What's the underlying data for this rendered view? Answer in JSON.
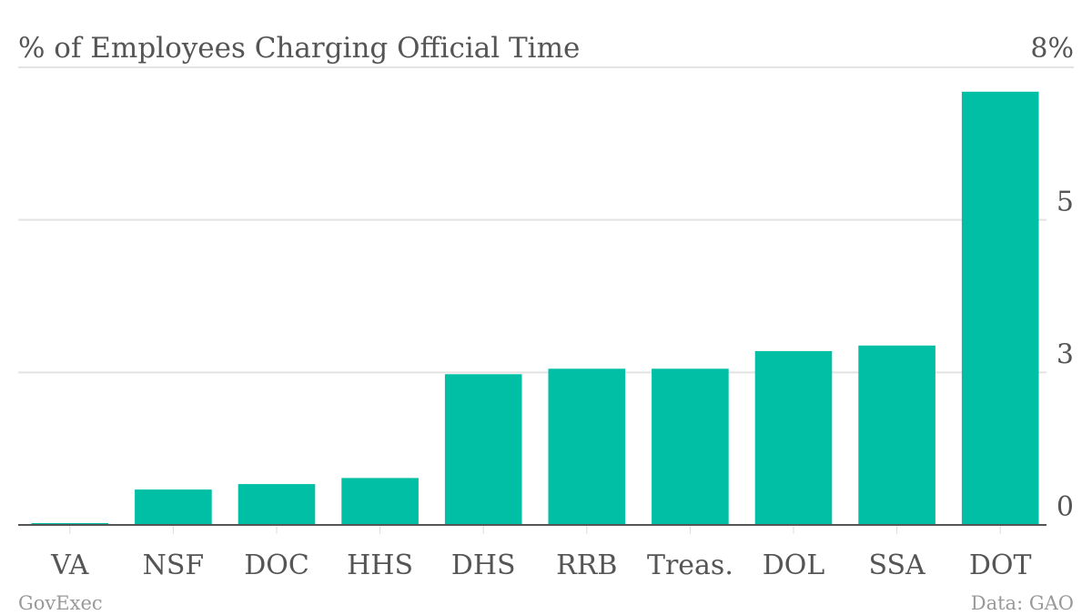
{
  "chart_data": {
    "type": "bar",
    "title": "% of Employees Charging Official Time",
    "xlabel": "",
    "ylabel": "",
    "categories": [
      "VA",
      "NSF",
      "DOC",
      "HHS",
      "DHS",
      "RRB",
      "Treas.",
      "DOL",
      "SSA",
      "DOT"
    ],
    "values": [
      0.03,
      0.58,
      0.67,
      0.77,
      2.47,
      2.56,
      2.56,
      2.85,
      2.94,
      7.1
    ],
    "ylim": [
      0,
      7.5
    ],
    "y_ticks": [
      0,
      2.5,
      5,
      7.5
    ],
    "y_tick_labels": [
      "0",
      "3",
      "5",
      "8%"
    ],
    "y_axis_side": "right",
    "grid": true,
    "bar_color": "#00bfa5"
  },
  "footer": {
    "source_brand": "GovExec",
    "data_credit": "Data: GAO"
  }
}
